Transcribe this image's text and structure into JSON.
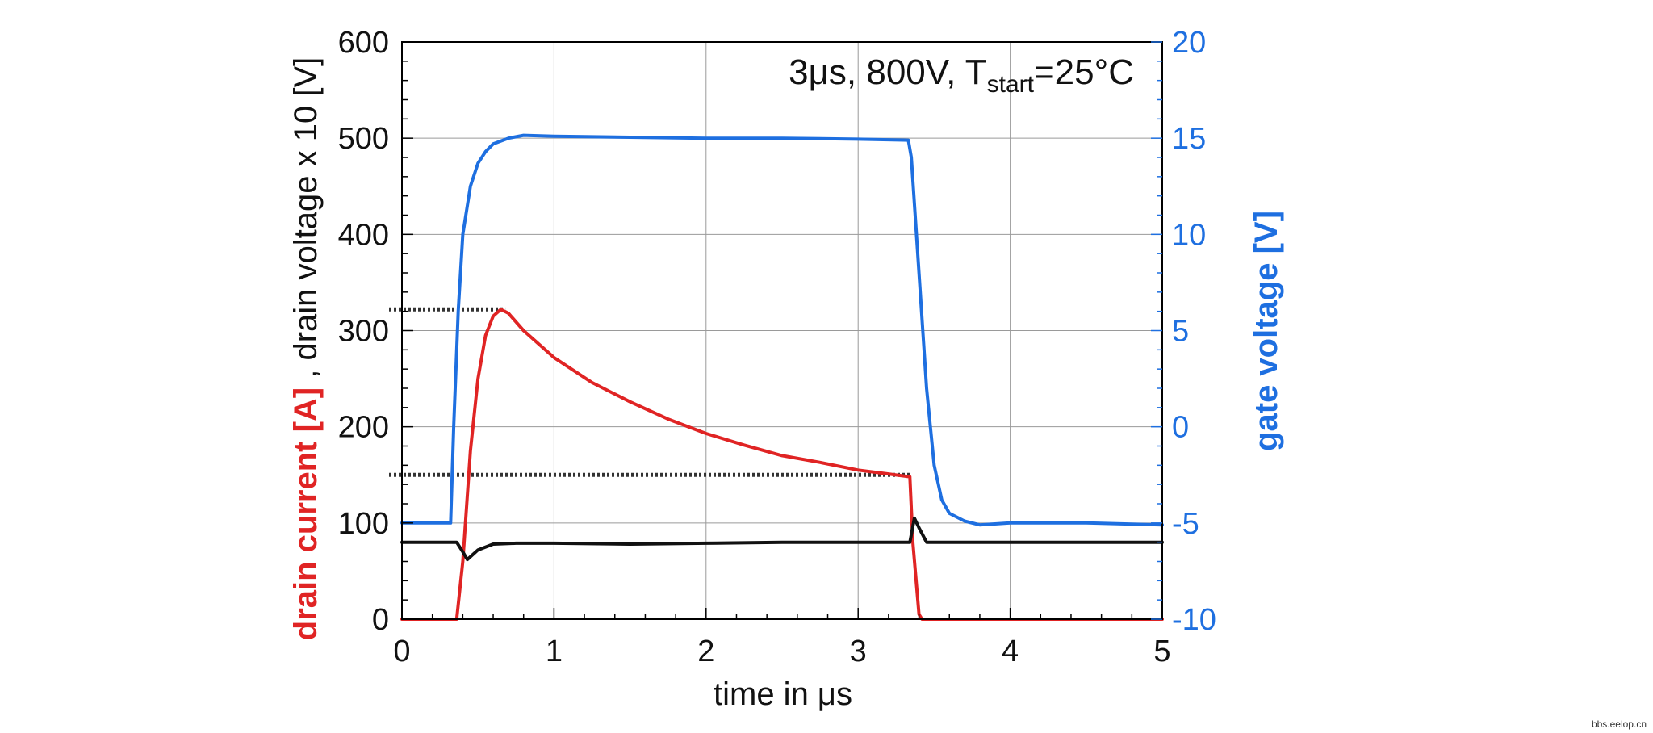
{
  "chart_data": {
    "type": "line",
    "annotation": {
      "prefix": "3μs, 800V, T",
      "subscript": "start",
      "suffix": "=25°C"
    },
    "xlabel": "time in μs",
    "ylabel_left": {
      "part1": "drain current [A]",
      "part2": " , drain voltage x 10 [V]"
    },
    "ylabel_right": "gate voltage [V]",
    "xlim": [
      0,
      5
    ],
    "ylim_left": [
      0,
      600
    ],
    "ylim_right": [
      -10,
      20
    ],
    "x_ticks": [
      "0",
      "1",
      "2",
      "3",
      "4",
      "5"
    ],
    "y_left_ticks": [
      "0",
      "100",
      "200",
      "300",
      "400",
      "500",
      "600"
    ],
    "y_right_ticks": [
      "-10",
      "-5",
      "0",
      "5",
      "10",
      "15",
      "20"
    ],
    "grid": true,
    "colors": {
      "drain_current": "#e02424",
      "drain_voltage": "#111111",
      "gate_voltage": "#1e6fe0",
      "axis": "#000000"
    },
    "series": [
      {
        "key": "drain_current",
        "axis": "left",
        "x": [
          0,
          0.36,
          0.4,
          0.45,
          0.5,
          0.55,
          0.6,
          0.65,
          0.7,
          0.8,
          1.0,
          1.25,
          1.5,
          1.75,
          2.0,
          2.25,
          2.5,
          2.75,
          3.0,
          3.2,
          3.34,
          3.36,
          3.4,
          3.42,
          5
        ],
        "y": [
          0,
          0,
          60,
          175,
          250,
          295,
          315,
          322,
          318,
          300,
          272,
          246,
          226,
          208,
          193,
          181,
          170,
          163,
          155,
          151,
          148,
          80,
          5,
          0,
          0
        ]
      },
      {
        "key": "drain_voltage",
        "axis": "left",
        "x": [
          0,
          0.36,
          0.4,
          0.43,
          0.5,
          0.6,
          0.75,
          1.0,
          1.5,
          2.0,
          2.5,
          3.0,
          3.34,
          3.37,
          3.4,
          3.45,
          5
        ],
        "y": [
          80,
          80,
          70,
          62,
          72,
          78,
          79,
          79,
          78,
          79,
          80,
          80,
          80,
          105,
          95,
          80,
          80
        ]
      },
      {
        "key": "gate_voltage",
        "axis": "right",
        "x": [
          0,
          0.32,
          0.34,
          0.37,
          0.4,
          0.45,
          0.5,
          0.55,
          0.6,
          0.7,
          0.8,
          1.0,
          1.5,
          2.0,
          2.5,
          3.0,
          3.33,
          3.35,
          3.4,
          3.45,
          3.5,
          3.55,
          3.6,
          3.7,
          3.8,
          4.0,
          4.5,
          5
        ],
        "y": [
          -5,
          -5,
          0,
          6,
          10,
          12.5,
          13.7,
          14.3,
          14.7,
          15,
          15.15,
          15.1,
          15.05,
          15,
          15,
          14.95,
          14.9,
          14,
          8,
          2,
          -2,
          -3.8,
          -4.5,
          -4.9,
          -5.1,
          -5,
          -5,
          -5.1
        ]
      }
    ],
    "reference_lines": [
      {
        "axis": "left",
        "y": 322,
        "x_from": 0,
        "x_to": 0.68
      },
      {
        "axis": "left",
        "y": 150,
        "x_from": 0,
        "x_to": 3.34
      }
    ]
  },
  "watermark": "bbs.eelop.cn"
}
